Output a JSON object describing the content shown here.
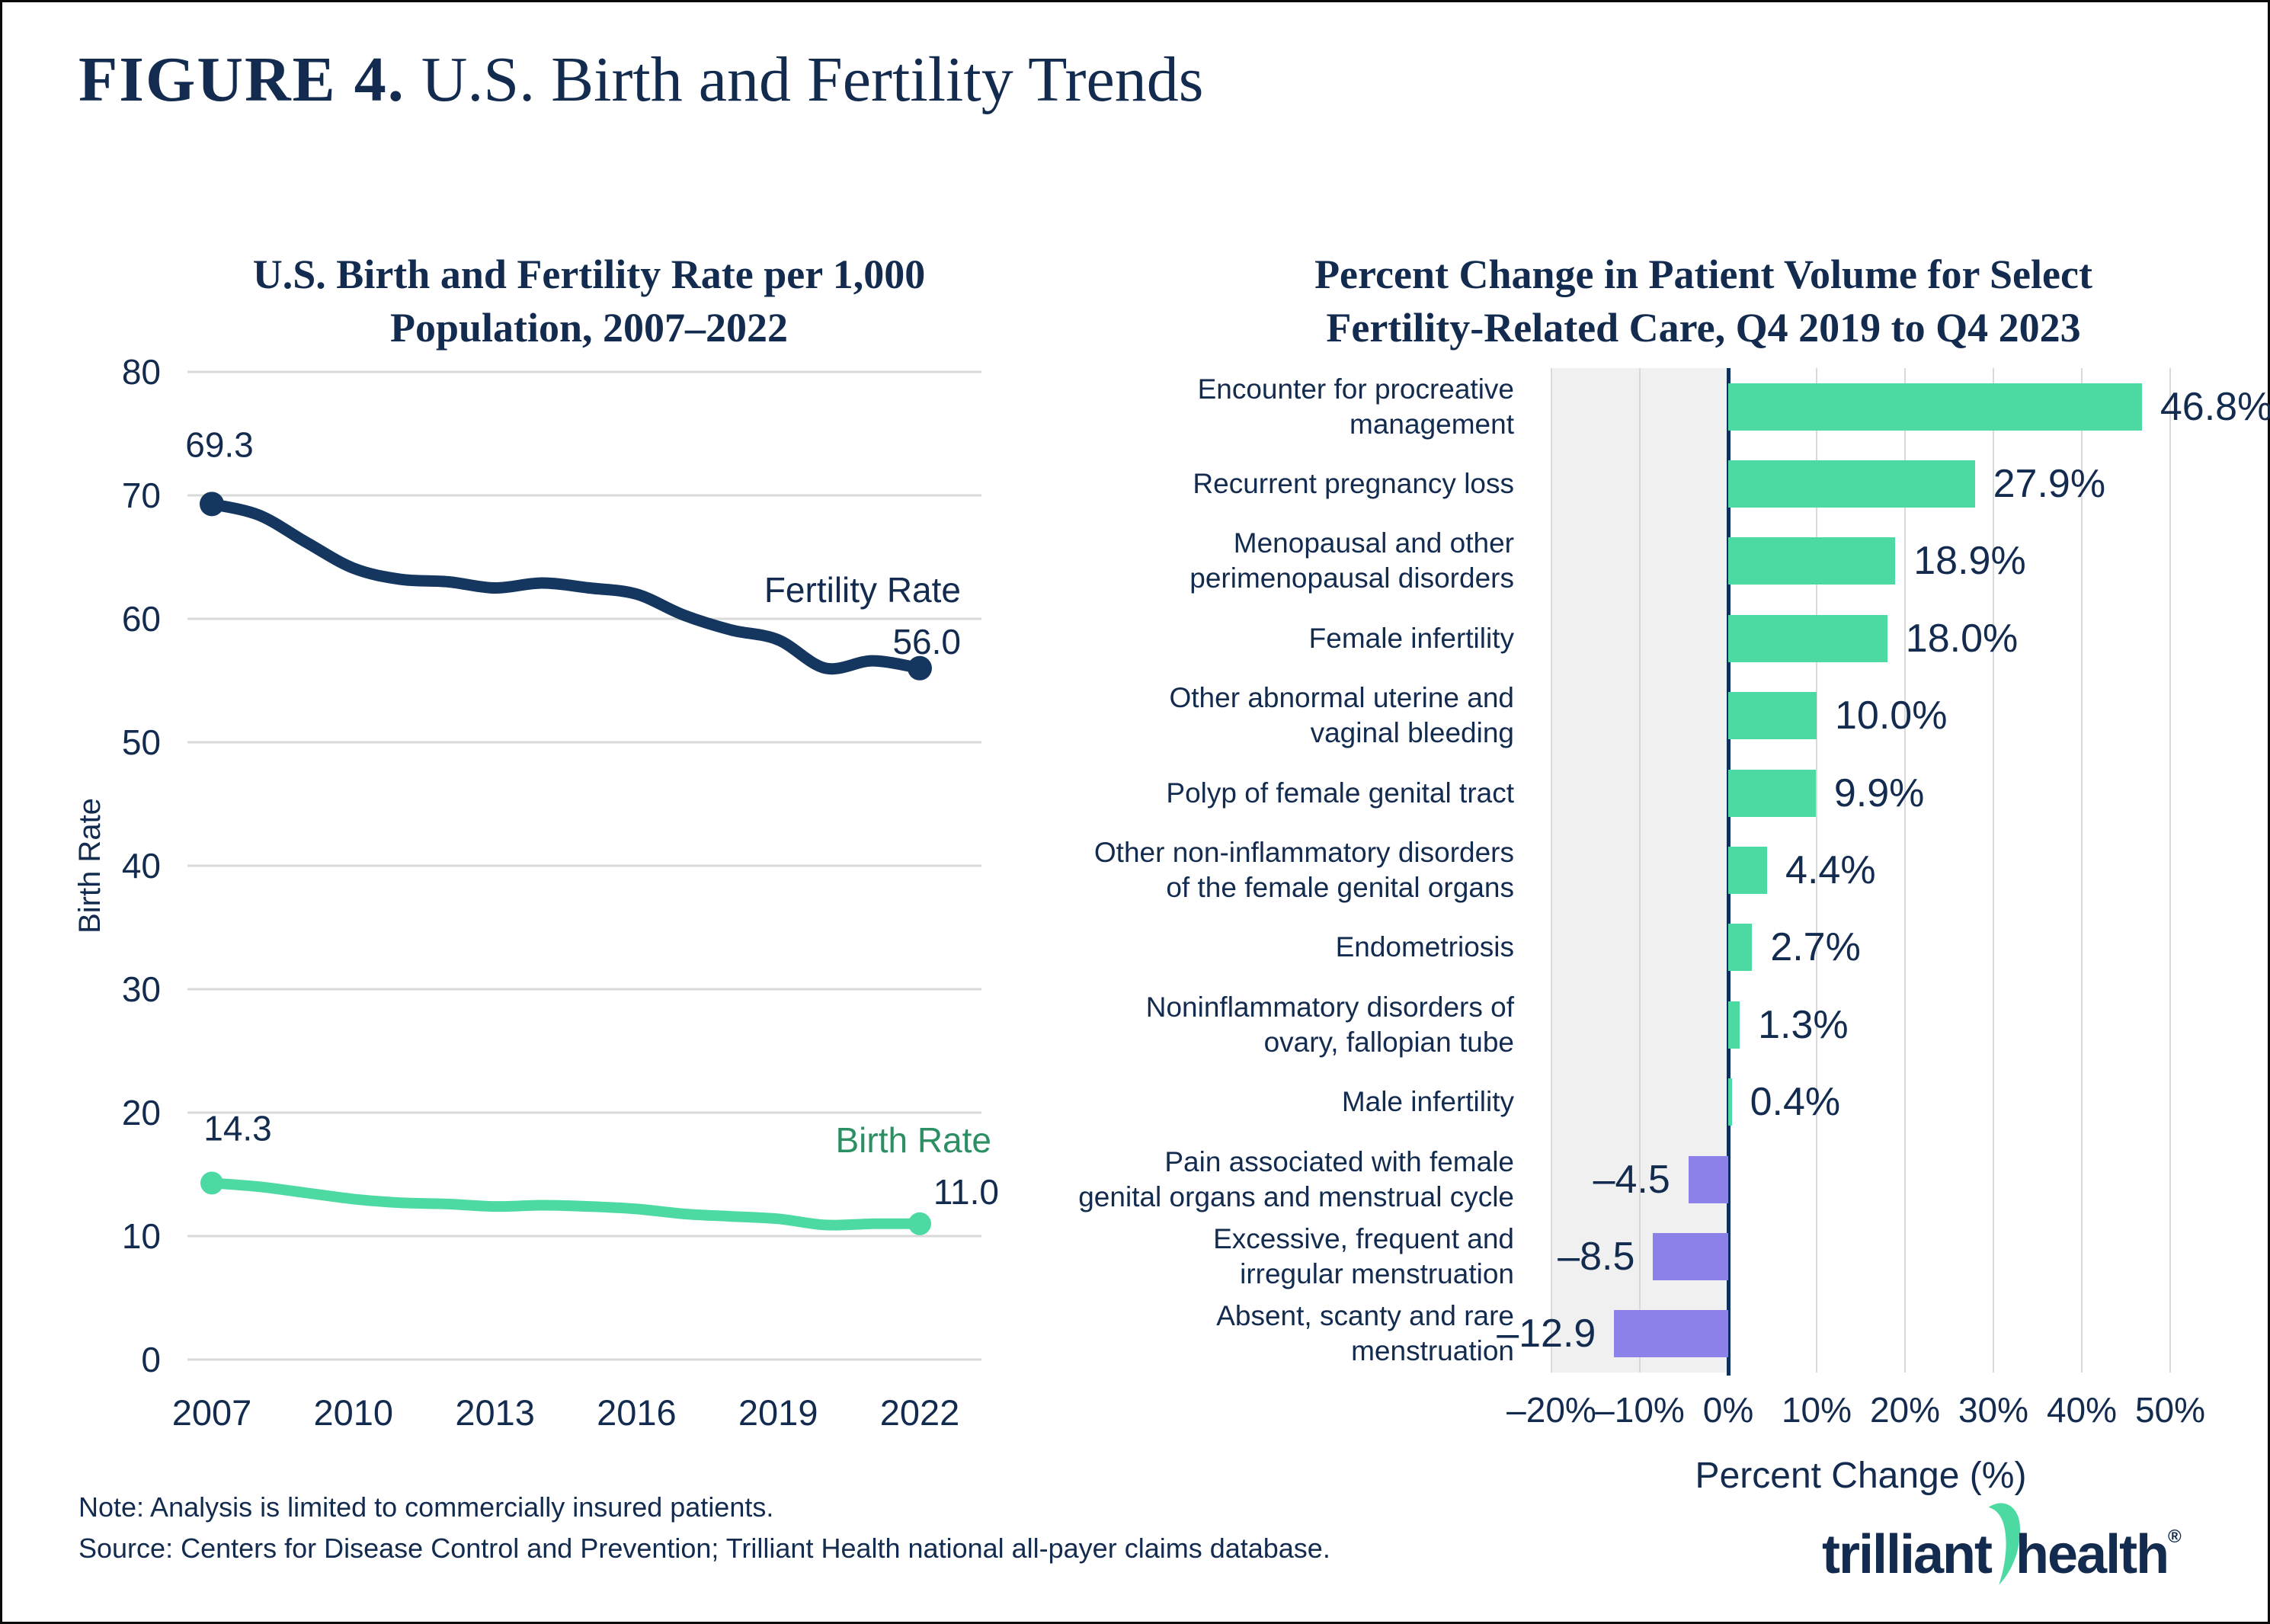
{
  "page": {
    "figure_label": "FIGURE 4.",
    "title": " U.S. Birth and Fertility Trends",
    "note_line1": "Note: Analysis is limited to commercially insured patients.",
    "note_line2": "Source: Centers for Disease Control and Prevention; Trilliant Health national all-payer claims database.",
    "logo": {
      "word1": "trilliant",
      "word2": "health",
      "registered": "®",
      "swoosh_icon": "green-swoosh-icon"
    }
  },
  "colors": {
    "navy_text": "#132b4e",
    "line_navy": "#14365f",
    "mint_green": "#4cd9a2",
    "label_green": "#2b8f63",
    "purple": "#8c81e9",
    "gridline": "#d9d9d9",
    "negative_region_bg": "#f0f0f1",
    "zero_line": "#0d3060",
    "background": "#ffffff"
  },
  "chart_data": [
    {
      "type": "line",
      "title_lines": [
        "U.S. Birth and Fertility Rate per 1,000",
        "Population, 2007–2022"
      ],
      "ylabel": "Birth Rate",
      "ylim": [
        0,
        80
      ],
      "y_ticks": [
        0,
        10,
        20,
        30,
        40,
        50,
        60,
        70,
        80
      ],
      "grid": "horizontal",
      "legend_position": "inline-annotations",
      "x": [
        2007,
        2008,
        2009,
        2010,
        2011,
        2012,
        2013,
        2014,
        2015,
        2016,
        2017,
        2018,
        2019,
        2020,
        2021,
        2022
      ],
      "x_tick_years": [
        2007,
        2010,
        2013,
        2016,
        2019,
        2022
      ],
      "x_tick_labels": [
        "2007",
        "2010",
        "2013",
        "2016",
        "2019",
        "2022"
      ],
      "series": [
        {
          "name": "Fertility Rate",
          "first_label": "69.3",
          "last_label": "56.0",
          "values": [
            69.3,
            68.4,
            66.2,
            64.1,
            63.2,
            63.0,
            62.5,
            62.9,
            62.5,
            62.0,
            60.3,
            59.1,
            58.3,
            56.0,
            56.6,
            56.0
          ]
        },
        {
          "name": "Birth Rate",
          "first_label": "14.3",
          "last_label": "11.0",
          "values": [
            14.3,
            14.0,
            13.5,
            13.0,
            12.7,
            12.6,
            12.4,
            12.5,
            12.4,
            12.2,
            11.8,
            11.6,
            11.4,
            10.9,
            11.0,
            11.0
          ]
        }
      ]
    },
    {
      "type": "bar",
      "orientation": "horizontal",
      "title_lines": [
        "Percent Change in Patient Volume for Select",
        "Fertility-Related Care, Q4 2019 to Q4 2023"
      ],
      "xlabel": "Percent Change (%)",
      "xlim": [
        -20,
        53
      ],
      "x_ticks": [
        -20,
        -10,
        0,
        10,
        20,
        30,
        40,
        50
      ],
      "x_tick_labels": [
        "–20%",
        "–10%",
        "0%",
        "10%",
        "20%",
        "30%",
        "40%",
        "50%"
      ],
      "negative_region": [
        -20,
        0
      ],
      "grid": "vertical",
      "categories": [
        {
          "label_lines": [
            "Encounter for procreative",
            "management"
          ],
          "value": 46.8,
          "value_label": "46.8%"
        },
        {
          "label_lines": [
            "Recurrent pregnancy loss"
          ],
          "value": 27.9,
          "value_label": "27.9%"
        },
        {
          "label_lines": [
            "Menopausal and other",
            "perimenopausal disorders"
          ],
          "value": 18.9,
          "value_label": "18.9%"
        },
        {
          "label_lines": [
            "Female infertility"
          ],
          "value": 18.0,
          "value_label": "18.0%"
        },
        {
          "label_lines": [
            "Other abnormal uterine and",
            "vaginal bleeding"
          ],
          "value": 10.0,
          "value_label": "10.0%"
        },
        {
          "label_lines": [
            "Polyp of female genital tract"
          ],
          "value": 9.9,
          "value_label": "9.9%"
        },
        {
          "label_lines": [
            "Other non-inflammatory disorders",
            "of the female genital organs"
          ],
          "value": 4.4,
          "value_label": "4.4%"
        },
        {
          "label_lines": [
            "Endometriosis"
          ],
          "value": 2.7,
          "value_label": "2.7%"
        },
        {
          "label_lines": [
            "Noninflammatory disorders of",
            "ovary, fallopian tube"
          ],
          "value": 1.3,
          "value_label": "1.3%"
        },
        {
          "label_lines": [
            "Male infertility"
          ],
          "value": 0.4,
          "value_label": "0.4%"
        },
        {
          "label_lines": [
            "Pain associated with female",
            "genital organs and menstrual cycle"
          ],
          "value": -4.5,
          "value_label": "–4.5"
        },
        {
          "label_lines": [
            "Excessive, frequent and",
            "irregular menstruation"
          ],
          "value": -8.5,
          "value_label": "–8.5"
        },
        {
          "label_lines": [
            "Absent, scanty and rare",
            "menstruation"
          ],
          "value": -12.9,
          "value_label": "–12.9"
        }
      ]
    }
  ]
}
